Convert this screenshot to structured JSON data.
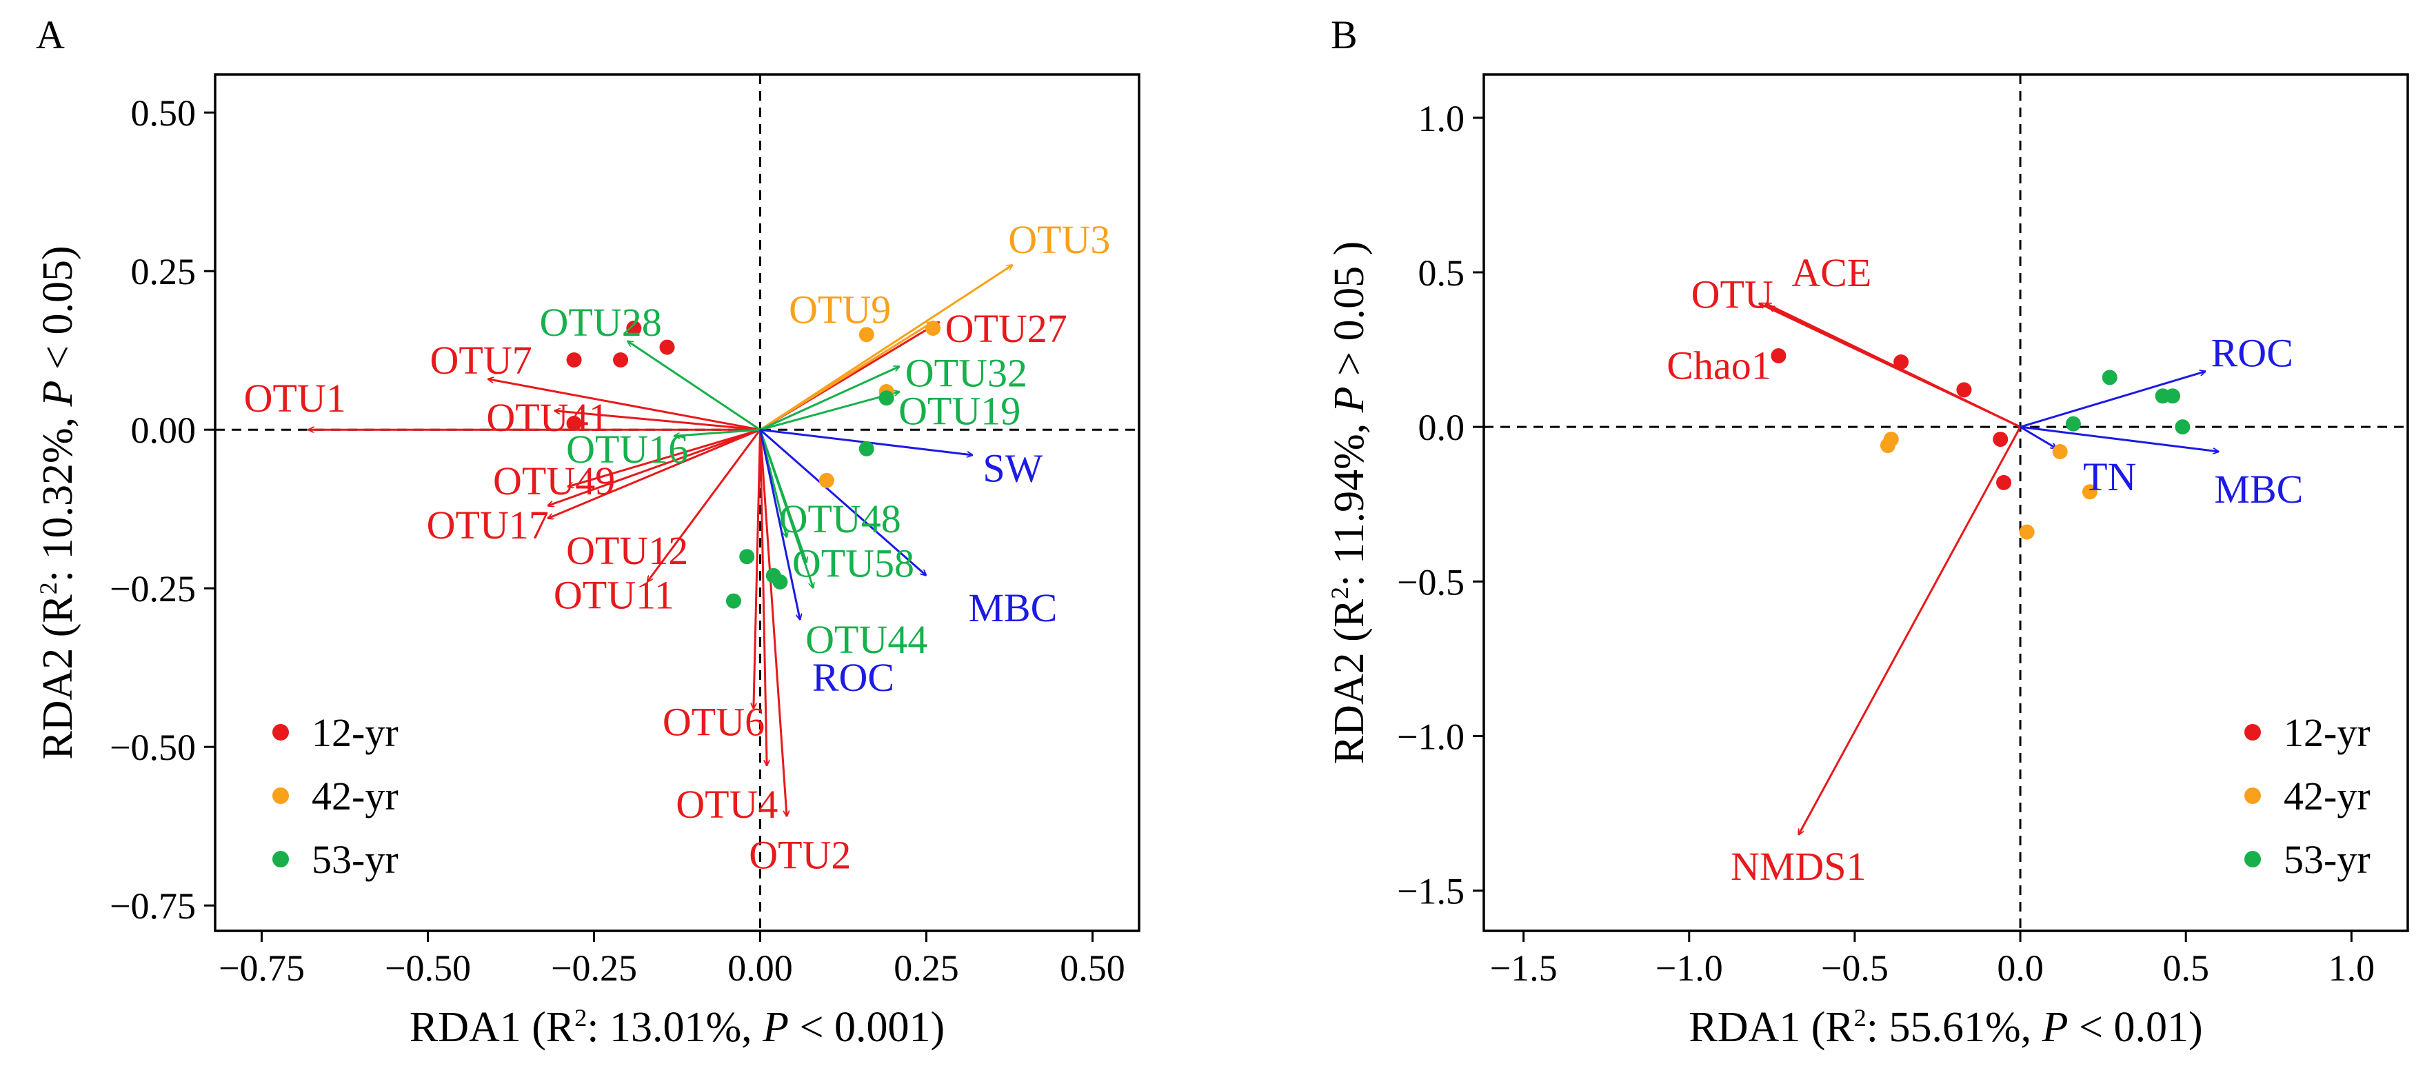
{
  "colors": {
    "red": "#e8191c",
    "orange": "#f9a11a",
    "green": "#17b04b",
    "blue": "#1d1ae6",
    "axis": "#000000"
  },
  "chart_data": [
    {
      "panel_label": "A",
      "type": "scatter",
      "xlabel": {
        "prefix": "RDA1 (R",
        "sup": "2",
        "mid": ": 13.01%, ",
        "p": "P",
        "suffix": " < 0.001)"
      },
      "ylabel": {
        "prefix": "RDA2 (R",
        "sup": "2",
        "mid": ": 10.32%, ",
        "p": "P",
        "suffix": " < 0.05)"
      },
      "xlim": [
        -0.82,
        0.57
      ],
      "ylim": [
        -0.79,
        0.56
      ],
      "xticks": [
        -0.75,
        -0.5,
        -0.25,
        0.0,
        0.25,
        0.5
      ],
      "yticks": [
        0.5,
        0.25,
        0.0,
        -0.25,
        -0.5,
        -0.75
      ],
      "tick_format": 2,
      "legend": {
        "position": "bottom-left",
        "entries": [
          {
            "label": "12-yr",
            "color": "red"
          },
          {
            "label": "42-yr",
            "color": "orange"
          },
          {
            "label": "53-yr",
            "color": "green"
          }
        ]
      },
      "points": [
        {
          "group": "12-yr",
          "color": "red",
          "x": -0.28,
          "y": 0.11
        },
        {
          "group": "12-yr",
          "color": "red",
          "x": -0.21,
          "y": 0.11
        },
        {
          "group": "12-yr",
          "color": "red",
          "x": -0.19,
          "y": 0.16
        },
        {
          "group": "12-yr",
          "color": "red",
          "x": -0.14,
          "y": 0.13
        },
        {
          "group": "12-yr",
          "color": "red",
          "x": -0.28,
          "y": 0.01
        },
        {
          "group": "42-yr",
          "color": "orange",
          "x": 0.16,
          "y": 0.15
        },
        {
          "group": "42-yr",
          "color": "orange",
          "x": 0.26,
          "y": 0.16
        },
        {
          "group": "42-yr",
          "color": "orange",
          "x": 0.19,
          "y": 0.06
        },
        {
          "group": "42-yr",
          "color": "orange",
          "x": 0.1,
          "y": -0.08
        },
        {
          "group": "53-yr",
          "color": "green",
          "x": 0.19,
          "y": 0.05
        },
        {
          "group": "53-yr",
          "color": "green",
          "x": 0.16,
          "y": -0.03
        },
        {
          "group": "53-yr",
          "color": "green",
          "x": -0.02,
          "y": -0.2
        },
        {
          "group": "53-yr",
          "color": "green",
          "x": 0.02,
          "y": -0.23
        },
        {
          "group": "53-yr",
          "color": "green",
          "x": 0.03,
          "y": -0.24
        },
        {
          "group": "53-yr",
          "color": "green",
          "x": -0.04,
          "y": -0.27
        }
      ],
      "vectors": [
        {
          "label": "OTU1",
          "color": "red",
          "x": -0.68,
          "y": 0.0,
          "lx": -0.7,
          "ly": 0.05,
          "anchor": "middle"
        },
        {
          "label": "OTU7",
          "color": "red",
          "x": -0.41,
          "y": 0.08,
          "lx": -0.42,
          "ly": 0.11,
          "anchor": "middle"
        },
        {
          "label": "OTU41",
          "color": "red",
          "x": -0.31,
          "y": 0.03,
          "lx": -0.32,
          "ly": 0.02,
          "anchor": "middle"
        },
        {
          "label": "OTU49",
          "color": "red",
          "x": -0.29,
          "y": -0.09,
          "lx": -0.31,
          "ly": -0.08,
          "anchor": "middle"
        },
        {
          "label": "OTU17",
          "color": "red",
          "x": -0.32,
          "y": -0.14,
          "lx": -0.41,
          "ly": -0.15,
          "anchor": "middle"
        },
        {
          "label": "OTU12",
          "color": "red",
          "x": -0.32,
          "y": -0.12,
          "lx": -0.2,
          "ly": -0.19,
          "anchor": "middle"
        },
        {
          "label": "OTU11",
          "color": "red",
          "x": -0.17,
          "y": -0.24,
          "lx": -0.22,
          "ly": -0.26,
          "anchor": "middle"
        },
        {
          "label": "OTU6",
          "color": "red",
          "x": -0.01,
          "y": -0.44,
          "lx": -0.07,
          "ly": -0.46,
          "anchor": "middle"
        },
        {
          "label": "OTU4",
          "color": "red",
          "x": 0.01,
          "y": -0.53,
          "lx": -0.05,
          "ly": -0.59,
          "anchor": "middle"
        },
        {
          "label": "OTU2",
          "color": "red",
          "x": 0.04,
          "y": -0.61,
          "lx": 0.06,
          "ly": -0.67,
          "anchor": "middle"
        },
        {
          "label": "OTU27",
          "color": "red",
          "x": 0.27,
          "y": 0.17,
          "lx": 0.37,
          "ly": 0.16,
          "anchor": "middle"
        },
        {
          "label": "OTU3",
          "color": "orange",
          "x": 0.38,
          "y": 0.26,
          "lx": 0.45,
          "ly": 0.3,
          "anchor": "middle"
        },
        {
          "label": "OTU9",
          "color": "orange",
          "x": 0.26,
          "y": 0.17,
          "lx": 0.12,
          "ly": 0.19,
          "anchor": "middle"
        },
        {
          "label": "OTU28",
          "color": "green",
          "x": -0.2,
          "y": 0.14,
          "lx": -0.24,
          "ly": 0.17,
          "anchor": "middle"
        },
        {
          "label": "OTU16",
          "color": "green",
          "x": -0.13,
          "y": -0.01,
          "lx": -0.2,
          "ly": -0.03,
          "anchor": "middle"
        },
        {
          "label": "OTU32",
          "color": "green",
          "x": 0.21,
          "y": 0.1,
          "lx": 0.31,
          "ly": 0.09,
          "anchor": "middle"
        },
        {
          "label": "OTU19",
          "color": "green",
          "x": 0.21,
          "y": 0.06,
          "lx": 0.3,
          "ly": 0.03,
          "anchor": "middle"
        },
        {
          "label": "OTU48",
          "color": "green",
          "x": 0.04,
          "y": -0.17,
          "lx": 0.12,
          "ly": -0.14,
          "anchor": "middle"
        },
        {
          "label": "OTU58",
          "color": "green",
          "x": 0.07,
          "y": -0.21,
          "lx": 0.14,
          "ly": -0.21,
          "anchor": "middle"
        },
        {
          "label": "OTU44",
          "color": "green",
          "x": 0.08,
          "y": -0.25,
          "lx": 0.16,
          "ly": -0.33,
          "anchor": "middle"
        },
        {
          "label": "SW",
          "color": "blue",
          "x": 0.32,
          "y": -0.04,
          "lx": 0.38,
          "ly": -0.06,
          "anchor": "middle"
        },
        {
          "label": "MBC",
          "color": "blue",
          "x": 0.25,
          "y": -0.23,
          "lx": 0.38,
          "ly": -0.28,
          "anchor": "middle"
        },
        {
          "label": "ROC",
          "color": "blue",
          "x": 0.06,
          "y": -0.3,
          "lx": 0.14,
          "ly": -0.39,
          "anchor": "middle"
        }
      ]
    },
    {
      "panel_label": "B",
      "type": "scatter",
      "xlabel": {
        "prefix": "RDA1 (R",
        "sup": "2",
        "mid": ": 55.61%, ",
        "p": "P",
        "suffix": " < 0.01)"
      },
      "ylabel": {
        "prefix": "RDA2 (R",
        "sup": "2",
        "mid": ": 11.94%, ",
        "p": "P",
        "suffix": " > 0.05 )"
      },
      "xlim": [
        -1.62,
        1.17
      ],
      "ylim": [
        -1.63,
        1.14
      ],
      "xticks": [
        -1.5,
        -1.0,
        -0.5,
        0.0,
        0.5,
        1.0
      ],
      "yticks": [
        1.0,
        0.5,
        0.0,
        -0.5,
        -1.0,
        -1.5
      ],
      "tick_format": 1,
      "legend": {
        "position": "bottom-right",
        "entries": [
          {
            "label": "12-yr",
            "color": "red"
          },
          {
            "label": "42-yr",
            "color": "orange"
          },
          {
            "label": "53-yr",
            "color": "green"
          }
        ]
      },
      "points": [
        {
          "group": "12-yr",
          "color": "red",
          "x": -0.73,
          "y": 0.23
        },
        {
          "group": "12-yr",
          "color": "red",
          "x": -0.36,
          "y": 0.21
        },
        {
          "group": "12-yr",
          "color": "red",
          "x": -0.17,
          "y": 0.12
        },
        {
          "group": "12-yr",
          "color": "red",
          "x": -0.06,
          "y": -0.04
        },
        {
          "group": "12-yr",
          "color": "red",
          "x": -0.05,
          "y": -0.18
        },
        {
          "group": "42-yr",
          "color": "orange",
          "x": -0.4,
          "y": -0.06
        },
        {
          "group": "42-yr",
          "color": "orange",
          "x": -0.39,
          "y": -0.04
        },
        {
          "group": "42-yr",
          "color": "orange",
          "x": 0.12,
          "y": -0.08
        },
        {
          "group": "42-yr",
          "color": "orange",
          "x": 0.21,
          "y": -0.21
        },
        {
          "group": "42-yr",
          "color": "orange",
          "x": 0.02,
          "y": -0.34
        },
        {
          "group": "53-yr",
          "color": "green",
          "x": 0.16,
          "y": 0.01
        },
        {
          "group": "53-yr",
          "color": "green",
          "x": 0.27,
          "y": 0.16
        },
        {
          "group": "53-yr",
          "color": "green",
          "x": 0.43,
          "y": 0.1
        },
        {
          "group": "53-yr",
          "color": "green",
          "x": 0.46,
          "y": 0.1
        },
        {
          "group": "53-yr",
          "color": "green",
          "x": 0.49,
          "y": 0.0
        }
      ],
      "vectors": [
        {
          "label": "OTU",
          "color": "red",
          "x": -0.77,
          "y": 0.4,
          "lx": -0.87,
          "ly": 0.43,
          "anchor": "middle"
        },
        {
          "label": "ACE",
          "color": "red",
          "x": -0.79,
          "y": 0.4,
          "lx": -0.57,
          "ly": 0.5,
          "anchor": "middle"
        },
        {
          "label": "Chao1",
          "color": "red",
          "x": -0.76,
          "y": 0.39,
          "lx": -0.91,
          "ly": 0.2,
          "anchor": "middle"
        },
        {
          "label": "NMDS1",
          "color": "red",
          "x": -0.67,
          "y": -1.32,
          "lx": -0.67,
          "ly": -1.42,
          "anchor": "middle"
        },
        {
          "label": "ROC",
          "color": "blue",
          "x": 0.56,
          "y": 0.18,
          "lx": 0.7,
          "ly": 0.24,
          "anchor": "middle"
        },
        {
          "label": "TN",
          "color": "blue",
          "x": 0.11,
          "y": -0.07,
          "lx": 0.27,
          "ly": -0.16,
          "anchor": "middle"
        },
        {
          "label": "MBC",
          "color": "blue",
          "x": 0.6,
          "y": -0.08,
          "lx": 0.72,
          "ly": -0.2,
          "anchor": "middle"
        }
      ]
    }
  ]
}
